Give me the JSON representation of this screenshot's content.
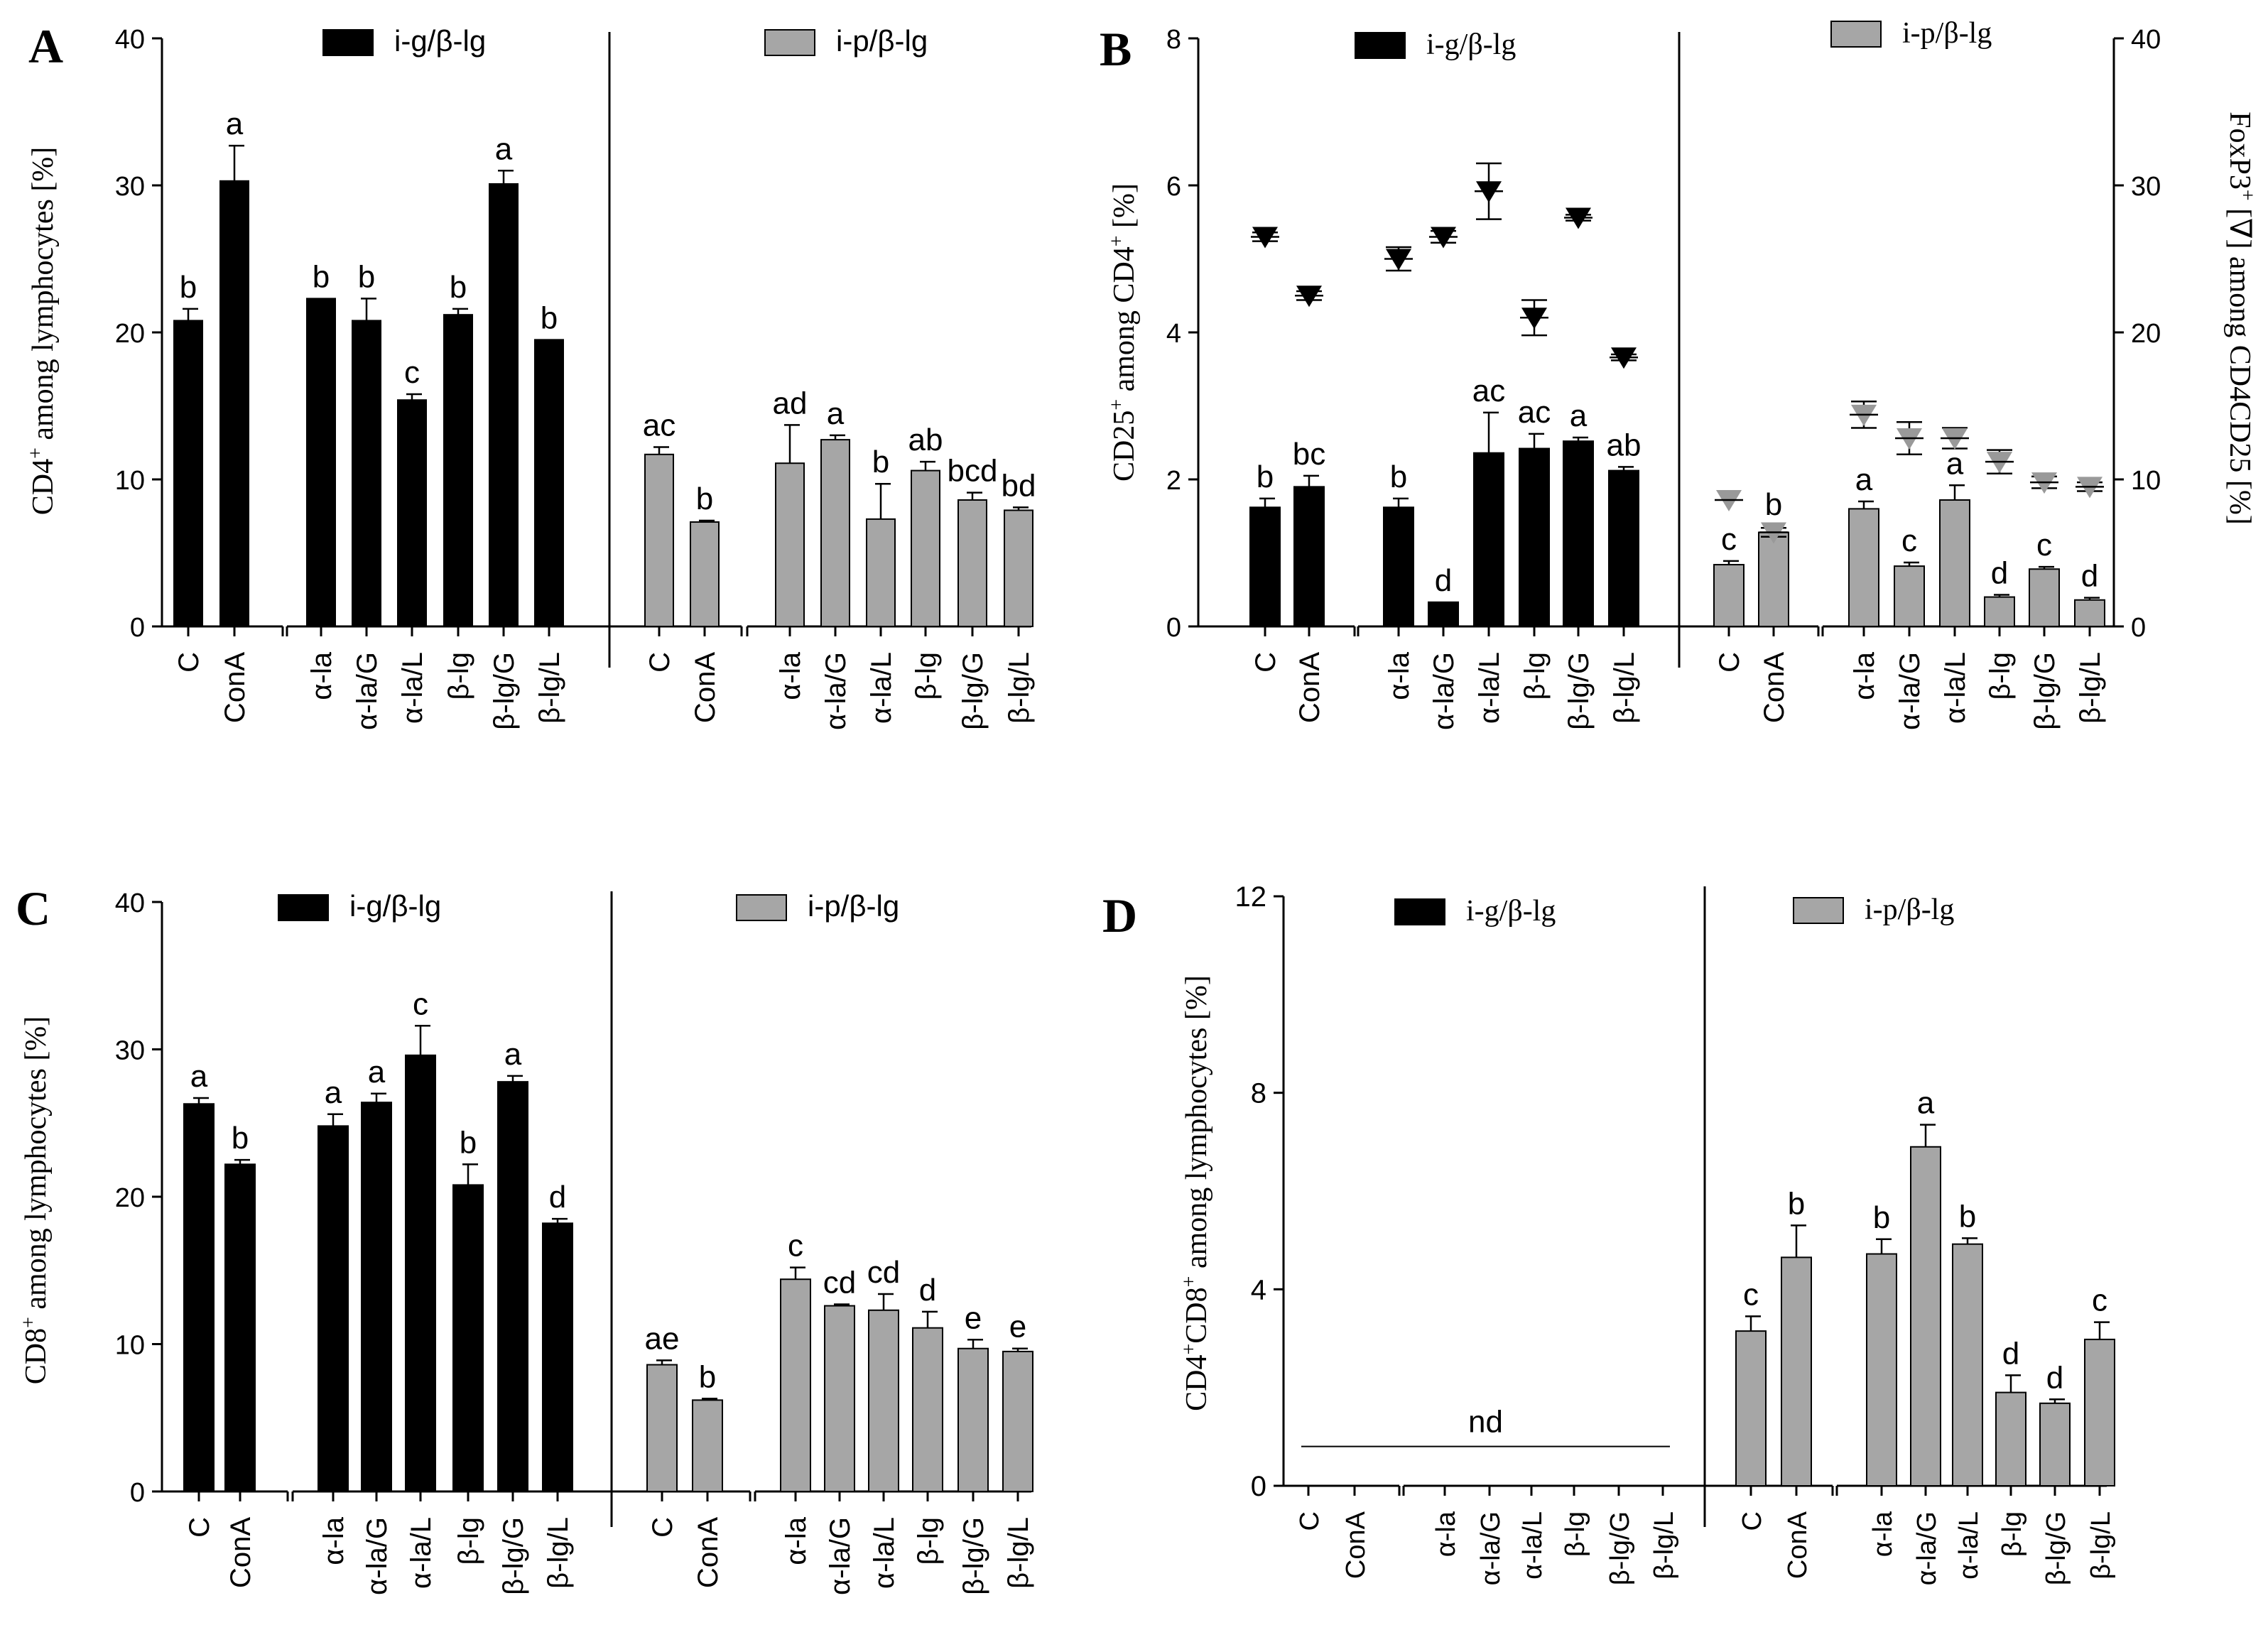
{
  "colors": {
    "black_bar": "#000000",
    "gray_bar": "#a6a6a6",
    "gray_marker": "#999999",
    "axis": "#000000"
  },
  "categories": [
    "C",
    "ConA",
    "α-la",
    "α-la/G",
    "α-la/L",
    "β-lg",
    "β-lg/G",
    "β-lg/L"
  ],
  "chart_data": [
    {
      "panel": "A",
      "type": "bar",
      "ylabel": "CD4+ among lymphocytes [%]",
      "ylabel_main": "CD4",
      "ylabel_sup": "+",
      "ylabel_rest": " among lymphocytes [%]",
      "ylim": [
        0,
        40
      ],
      "yticks": [
        "0",
        "10",
        "20",
        "30",
        "40"
      ],
      "tick_values": [
        0,
        10,
        20,
        30,
        40
      ],
      "series": [
        {
          "name": "i-g/β-lg",
          "color": "#000000",
          "values": [
            20.8,
            30.3,
            22.3,
            20.8,
            15.4,
            21.2,
            30.1,
            19.5
          ],
          "errors": [
            0.8,
            2.4,
            0,
            1.5,
            0.4,
            0.4,
            0.9,
            0
          ],
          "letters": [
            "b",
            "a",
            "b",
            "b",
            "c",
            "b",
            "a",
            "b"
          ]
        },
        {
          "name": "i-p/β-lg",
          "color": "#a6a6a6",
          "values": [
            11.7,
            7.1,
            11.1,
            12.7,
            7.3,
            10.6,
            8.6,
            7.9
          ],
          "errors": [
            0.5,
            0.1,
            2.6,
            0.3,
            2.4,
            0.6,
            0.5,
            0.2
          ],
          "letters": [
            "ac",
            "b",
            "ad",
            "a",
            "b",
            "ab",
            "bcd",
            "bd"
          ]
        }
      ]
    },
    {
      "panel": "B",
      "type": "bar",
      "ylabel": "CD25+ among CD4+ [%]",
      "ylabel_main": "CD25",
      "ylabel_sup": "+",
      "ylabel_rest": " among CD4",
      "ylabel_sup2": "+",
      "ylabel_rest2": " [%]",
      "ylabel_right": "FoxP3+ [∇] among CD4CD25 [%]",
      "ylabel_right_main": "FoxP3",
      "ylabel_right_sup": "+",
      "ylabel_right_rest": " [∇] among CD4CD25 [%]",
      "ylim": [
        0,
        8
      ],
      "yticks": [
        "0",
        "2",
        "4",
        "6",
        "8"
      ],
      "tick_values": [
        0,
        2,
        4,
        6,
        8
      ],
      "ylim_right": [
        0,
        40
      ],
      "yticks_right": [
        "0",
        "10",
        "20",
        "30",
        "40"
      ],
      "series": [
        {
          "name": "i-g/β-lg",
          "color": "#000000",
          "values": [
            1.62,
            1.9,
            1.62,
            0.33,
            2.36,
            2.42,
            2.52,
            2.12
          ],
          "errors": [
            0.12,
            0.15,
            0.12,
            0,
            0.55,
            0.2,
            0.05,
            0.05
          ],
          "letters": [
            "b",
            "bc",
            "b",
            "d",
            "ac",
            "ac",
            "a",
            "ab"
          ],
          "foxp3": [
            26.5,
            22.5,
            25.0,
            26.5,
            29.6,
            21.0,
            27.8,
            18.3
          ],
          "foxp3_err": [
            0.3,
            0.3,
            0.8,
            0.4,
            1.9,
            1.2,
            0.2,
            0.2
          ]
        },
        {
          "name": "i-p/β-lg",
          "color": "#a6a6a6",
          "values": [
            0.84,
            1.28,
            1.6,
            0.82,
            1.72,
            0.4,
            0.78,
            0.36
          ],
          "errors": [
            0.05,
            0.08,
            0.1,
            0.05,
            0.2,
            0.03,
            0.03,
            0.03
          ],
          "letters": [
            "c",
            "b",
            "a",
            "c",
            "a",
            "d",
            "c",
            "d"
          ],
          "foxp3": [
            8.6,
            6.4,
            14.4,
            12.8,
            12.8,
            11.2,
            9.8,
            9.5
          ],
          "foxp3_err": [
            0,
            0.3,
            0.9,
            1.1,
            0.7,
            0.8,
            0.4,
            0.3
          ]
        }
      ]
    },
    {
      "panel": "C",
      "type": "bar",
      "ylabel": "CD8+ among lymphocytes [%]",
      "ylabel_main": "CD8",
      "ylabel_sup": "+",
      "ylabel_rest": " among lymphocytes [%]",
      "ylim": [
        0,
        40
      ],
      "yticks": [
        "0",
        "10",
        "20",
        "30",
        "40"
      ],
      "tick_values": [
        0,
        10,
        20,
        30,
        40
      ],
      "series": [
        {
          "name": "i-g/β-lg",
          "color": "#000000",
          "values": [
            26.3,
            22.2,
            24.8,
            26.4,
            29.6,
            20.8,
            27.8,
            18.2
          ],
          "errors": [
            0.4,
            0.3,
            0.8,
            0.6,
            2.0,
            1.4,
            0.4,
            0.3
          ],
          "letters": [
            "a",
            "b",
            "a",
            "a",
            "c",
            "b",
            "a",
            "d"
          ]
        },
        {
          "name": "i-p/β-lg",
          "color": "#a6a6a6",
          "values": [
            8.6,
            6.2,
            14.4,
            12.6,
            12.3,
            11.1,
            9.7,
            9.5
          ],
          "errors": [
            0.3,
            0.1,
            0.8,
            0.1,
            1.1,
            1.1,
            0.6,
            0.2
          ],
          "letters": [
            "ae",
            "b",
            "c",
            "cd",
            "cd",
            "d",
            "e",
            "e"
          ]
        }
      ]
    },
    {
      "panel": "D",
      "type": "bar",
      "ylabel": "CD4+CD8+ among lymphocytes [%]",
      "ylabel_main": "CD4",
      "ylabel_sup": "+",
      "ylabel_rest": "CD8",
      "ylabel_sup2": "+",
      "ylabel_rest2": " among lymphocytes [%]",
      "ylim": [
        0,
        12
      ],
      "yticks": [
        "0",
        "4",
        "8",
        "12"
      ],
      "tick_values": [
        0,
        4,
        8,
        12
      ],
      "nd_label": "nd",
      "series": [
        {
          "name": "i-g/β-lg",
          "color": "#000000",
          "values": [
            0,
            0,
            0,
            0,
            0,
            0,
            0,
            0
          ],
          "errors": [
            0,
            0,
            0,
            0,
            0,
            0,
            0,
            0
          ],
          "letters": [
            "",
            "",
            "",
            "",
            "",
            "",
            "",
            ""
          ],
          "not_detected": true
        },
        {
          "name": "i-p/β-lg",
          "color": "#a6a6a6",
          "values": [
            3.15,
            4.65,
            4.72,
            6.9,
            4.92,
            1.9,
            1.68,
            2.98
          ],
          "errors": [
            0.3,
            0.65,
            0.3,
            0.45,
            0.12,
            0.35,
            0.08,
            0.35
          ],
          "letters": [
            "c",
            "b",
            "b",
            "a",
            "b",
            "d",
            "d",
            "c"
          ]
        }
      ]
    }
  ]
}
